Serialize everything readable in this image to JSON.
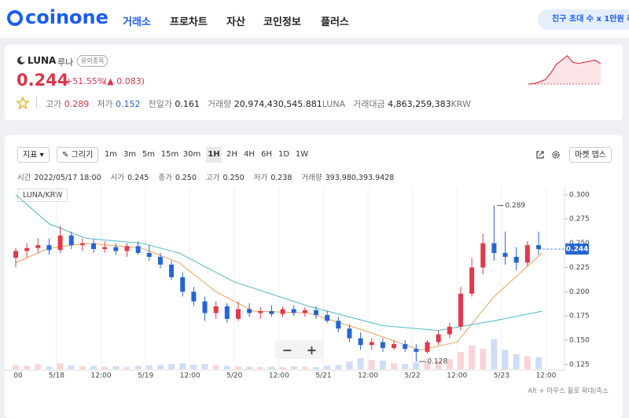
{
  "header": {
    "logo": "coinone",
    "nav": [
      "거래소",
      "프로차트",
      "자산",
      "코인정보",
      "플러스"
    ],
    "promo": "친구 초대 수 x 1만원 리"
  },
  "ticker": {
    "symbol": "LUNA",
    "name": "루나",
    "badge": "유의종목",
    "price": "0.244",
    "change_pct": "+51.55%",
    "change": "(▲ 0.083)",
    "stats": [
      {
        "label": "고가",
        "value": "0.289"
      },
      {
        "label": "저가",
        "value": "0.152"
      },
      {
        "label": "전일가",
        "value": "0.161"
      },
      {
        "label": "거래량",
        "value": "20,974,430,545.881",
        "unit": "LUNA"
      },
      {
        "label": "거래대금",
        "value": "4,863,259,383",
        "unit": "KRW"
      }
    ]
  },
  "sparkline": {
    "values": [
      0.15,
      0.152,
      0.16,
      0.17,
      0.2,
      0.24,
      0.26,
      0.28,
      0.25,
      0.245,
      0.25,
      0.255,
      0.26,
      0.244
    ],
    "color": "#d9364a"
  },
  "toolbar": {
    "indicator": "지표",
    "draw": "그리기",
    "intervals": [
      "1m",
      "3m",
      "5m",
      "15m",
      "30m",
      "1H",
      "2H",
      "4H",
      "6H",
      "1D",
      "1W"
    ],
    "active_index": 5,
    "depth": "마켓 뎁스"
  },
  "ohlc_info": [
    {
      "label": "시간",
      "value": "2022/05/17 18:00"
    },
    {
      "label": "시가",
      "value": "0.245"
    },
    {
      "label": "종가",
      "value": "0.250"
    },
    {
      "label": "고가",
      "value": "0.250"
    },
    {
      "label": "저가",
      "value": "0.238"
    },
    {
      "label": "거래량",
      "value": "393,980,393.9428"
    }
  ],
  "chart_data": {
    "type": "candlestick",
    "legend": "LUNA/KRW",
    "x": [
      1,
      4,
      7,
      10,
      13,
      16,
      19,
      22,
      25,
      28,
      31,
      34,
      37,
      40,
      43,
      46,
      49,
      52,
      55,
      58,
      61,
      64,
      67,
      70,
      73,
      76,
      79,
      82,
      85,
      88,
      91,
      94,
      97,
      100,
      103,
      106,
      109,
      112,
      115,
      118,
      121,
      124,
      127,
      130,
      133,
      136,
      139,
      142
    ],
    "open": [
      0.235,
      0.242,
      0.245,
      0.248,
      0.243,
      0.258,
      0.248,
      0.25,
      0.244,
      0.246,
      0.242,
      0.247,
      0.24,
      0.236,
      0.228,
      0.215,
      0.2,
      0.19,
      0.178,
      0.185,
      0.172,
      0.182,
      0.178,
      0.18,
      0.177,
      0.182,
      0.178,
      0.181,
      0.176,
      0.17,
      0.162,
      0.152,
      0.145,
      0.148,
      0.142,
      0.146,
      0.141,
      0.138,
      0.148,
      0.156,
      0.164,
      0.198,
      0.225,
      0.25,
      0.24,
      0.236,
      0.23,
      0.248
    ],
    "high": [
      0.245,
      0.25,
      0.255,
      0.255,
      0.268,
      0.262,
      0.255,
      0.254,
      0.252,
      0.25,
      0.25,
      0.252,
      0.248,
      0.24,
      0.232,
      0.22,
      0.205,
      0.195,
      0.19,
      0.188,
      0.19,
      0.188,
      0.184,
      0.186,
      0.185,
      0.186,
      0.184,
      0.185,
      0.18,
      0.174,
      0.166,
      0.158,
      0.152,
      0.152,
      0.15,
      0.15,
      0.146,
      0.15,
      0.16,
      0.168,
      0.205,
      0.235,
      0.26,
      0.289,
      0.262,
      0.246,
      0.252,
      0.262
    ],
    "low": [
      0.225,
      0.235,
      0.24,
      0.238,
      0.24,
      0.244,
      0.242,
      0.24,
      0.24,
      0.238,
      0.236,
      0.238,
      0.232,
      0.224,
      0.212,
      0.195,
      0.185,
      0.17,
      0.172,
      0.168,
      0.17,
      0.174,
      0.172,
      0.174,
      0.174,
      0.175,
      0.174,
      0.172,
      0.168,
      0.158,
      0.148,
      0.14,
      0.14,
      0.138,
      0.14,
      0.138,
      0.128,
      0.136,
      0.145,
      0.152,
      0.16,
      0.195,
      0.218,
      0.232,
      0.228,
      0.222,
      0.226,
      0.238
    ],
    "close": [
      0.242,
      0.245,
      0.248,
      0.243,
      0.258,
      0.248,
      0.25,
      0.244,
      0.246,
      0.242,
      0.247,
      0.24,
      0.236,
      0.228,
      0.215,
      0.2,
      0.19,
      0.178,
      0.185,
      0.172,
      0.182,
      0.178,
      0.18,
      0.177,
      0.182,
      0.178,
      0.181,
      0.176,
      0.17,
      0.162,
      0.152,
      0.145,
      0.148,
      0.142,
      0.146,
      0.141,
      0.138,
      0.148,
      0.156,
      0.164,
      0.198,
      0.225,
      0.25,
      0.24,
      0.236,
      0.23,
      0.248,
      0.244
    ],
    "volume": [
      10,
      8,
      12,
      6,
      14,
      9,
      7,
      8,
      6,
      7,
      5,
      8,
      9,
      10,
      12,
      14,
      10,
      12,
      9,
      8,
      7,
      6,
      5,
      6,
      5,
      7,
      6,
      5,
      8,
      10,
      18,
      26,
      22,
      20,
      14,
      12,
      16,
      18,
      20,
      24,
      40,
      55,
      48,
      70,
      45,
      35,
      30,
      28
    ],
    "up_color": "#e2394a",
    "down_color": "#2465d6",
    "ma": [
      {
        "color": "#e8a35a",
        "x": [
          1,
          10,
          20,
          35,
          45,
          55,
          65,
          80,
          95,
          110,
          120,
          130,
          143
        ],
        "values": [
          0.23,
          0.245,
          0.25,
          0.245,
          0.23,
          0.2,
          0.18,
          0.178,
          0.16,
          0.14,
          0.148,
          0.195,
          0.24
        ]
      },
      {
        "color": "#4db6c6",
        "x": [
          1,
          10,
          20,
          35,
          45,
          60,
          80,
          100,
          115,
          130,
          143
        ],
        "values": [
          0.3,
          0.27,
          0.255,
          0.25,
          0.24,
          0.21,
          0.185,
          0.165,
          0.16,
          0.17,
          0.18
        ]
      }
    ],
    "xlim": [
      1,
      149
    ],
    "xticks": [
      {
        "value": 0,
        "label": "00"
      },
      {
        "value": 12,
        "label": "5/18"
      },
      {
        "value": 24,
        "label": "12:00"
      },
      {
        "value": 36,
        "label": "5/19"
      },
      {
        "value": 48,
        "label": "12:00"
      },
      {
        "value": 60,
        "label": "5/20"
      },
      {
        "value": 72,
        "label": "12:00"
      },
      {
        "value": 84,
        "label": "5/21"
      },
      {
        "value": 96,
        "label": "12:00"
      },
      {
        "value": 108,
        "label": "5/22"
      },
      {
        "value": 120,
        "label": "12:00"
      },
      {
        "value": 132,
        "label": "5/23"
      },
      {
        "value": 144,
        "label": "12:00"
      }
    ],
    "ylim": [
      0.12,
      0.308
    ],
    "yticks": [
      {
        "value": 0.3,
        "label": "0.300"
      },
      {
        "value": 0.275,
        "label": "0.275"
      },
      {
        "value": 0.25,
        "label": "0.250"
      },
      {
        "value": 0.225,
        "label": "0.225"
      },
      {
        "value": 0.2,
        "label": "0.200"
      },
      {
        "value": 0.175,
        "label": "0.175"
      },
      {
        "value": 0.15,
        "label": "0.150"
      },
      {
        "value": 0.125,
        "label": "0.125"
      }
    ],
    "grid": true,
    "annotations": [
      {
        "x": 130,
        "value": 0.289,
        "label": "0.289"
      },
      {
        "x": 109,
        "value": 0.128,
        "label": "0.128"
      }
    ],
    "last_price": {
      "value": 0.244,
      "label": "0.244",
      "color": "#2465d6"
    }
  },
  "zoom": [
    "−",
    "+"
  ],
  "footer": "Alt + 마우스 휠로 확대/축소"
}
